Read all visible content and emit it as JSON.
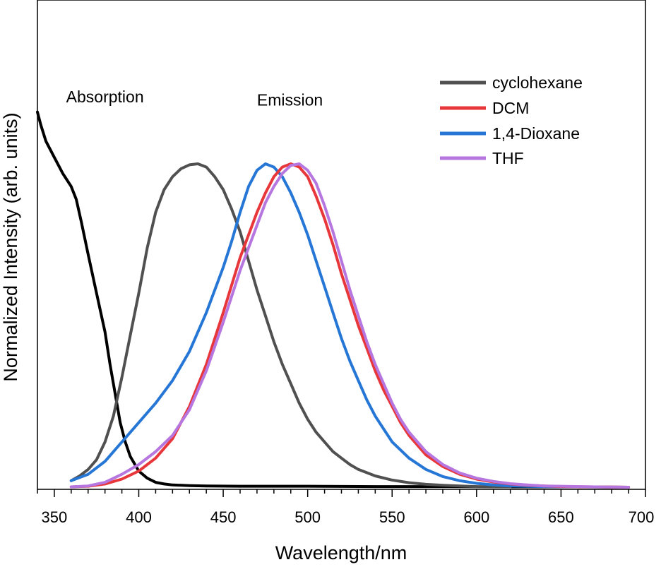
{
  "chart_data": {
    "type": "line",
    "title": "",
    "xlabel": "Wavelength/nm",
    "ylabel": "Normalized Intensity (arb. units)",
    "xlim": [
      340,
      700
    ],
    "ylim": [
      0,
      1.15
    ],
    "x_ticks": [
      350,
      400,
      450,
      500,
      550,
      600,
      650,
      700
    ],
    "y_ticks_shown": false,
    "annotations": [
      {
        "text": "Absorption",
        "x": 357,
        "y": 1.19
      },
      {
        "text": "Emission",
        "x": 470,
        "y": 1.18
      }
    ],
    "legend": {
      "position": "top-right",
      "entries": [
        "cyclohexane",
        "DCM",
        "1,4-Dioxane",
        "THF"
      ]
    },
    "series": [
      {
        "name": "cyclohexane",
        "color": "#505050",
        "in_legend": true,
        "points": [
          [
            360,
            0.02
          ],
          [
            365,
            0.035
          ],
          [
            370,
            0.055
          ],
          [
            375,
            0.085
          ],
          [
            380,
            0.14
          ],
          [
            385,
            0.22
          ],
          [
            390,
            0.34
          ],
          [
            395,
            0.47
          ],
          [
            400,
            0.6
          ],
          [
            405,
            0.74
          ],
          [
            410,
            0.85
          ],
          [
            415,
            0.92
          ],
          [
            420,
            0.96
          ],
          [
            425,
            0.985
          ],
          [
            430,
            0.997
          ],
          [
            435,
            1.0
          ],
          [
            440,
            0.99
          ],
          [
            445,
            0.96
          ],
          [
            450,
            0.92
          ],
          [
            455,
            0.86
          ],
          [
            460,
            0.79
          ],
          [
            465,
            0.7
          ],
          [
            470,
            0.61
          ],
          [
            475,
            0.53
          ],
          [
            480,
            0.45
          ],
          [
            485,
            0.38
          ],
          [
            490,
            0.32
          ],
          [
            495,
            0.26
          ],
          [
            500,
            0.21
          ],
          [
            505,
            0.17
          ],
          [
            510,
            0.14
          ],
          [
            515,
            0.11
          ],
          [
            520,
            0.09
          ],
          [
            525,
            0.07
          ],
          [
            530,
            0.055
          ],
          [
            535,
            0.045
          ],
          [
            540,
            0.035
          ],
          [
            550,
            0.022
          ],
          [
            560,
            0.014
          ],
          [
            570,
            0.009
          ],
          [
            580,
            0.006
          ],
          [
            590,
            0.004
          ],
          [
            600,
            0.002
          ],
          [
            620,
            0.001
          ]
        ]
      },
      {
        "name": "DCM",
        "color": "#e8373b",
        "in_legend": true,
        "points": [
          [
            360,
            0.001
          ],
          [
            370,
            0.003
          ],
          [
            380,
            0.01
          ],
          [
            390,
            0.025
          ],
          [
            400,
            0.05
          ],
          [
            410,
            0.09
          ],
          [
            420,
            0.15
          ],
          [
            430,
            0.25
          ],
          [
            440,
            0.38
          ],
          [
            450,
            0.54
          ],
          [
            460,
            0.71
          ],
          [
            470,
            0.85
          ],
          [
            475,
            0.91
          ],
          [
            480,
            0.96
          ],
          [
            485,
            0.99
          ],
          [
            490,
            1.0
          ],
          [
            495,
            0.99
          ],
          [
            500,
            0.96
          ],
          [
            505,
            0.9
          ],
          [
            510,
            0.83
          ],
          [
            515,
            0.75
          ],
          [
            520,
            0.66
          ],
          [
            525,
            0.58
          ],
          [
            530,
            0.5
          ],
          [
            535,
            0.43
          ],
          [
            540,
            0.36
          ],
          [
            545,
            0.3
          ],
          [
            550,
            0.25
          ],
          [
            555,
            0.2
          ],
          [
            560,
            0.16
          ],
          [
            570,
            0.1
          ],
          [
            580,
            0.064
          ],
          [
            590,
            0.04
          ],
          [
            600,
            0.025
          ],
          [
            610,
            0.016
          ],
          [
            620,
            0.01
          ],
          [
            630,
            0.006
          ],
          [
            640,
            0.004
          ],
          [
            650,
            0.002
          ],
          [
            670,
            0.001
          ],
          [
            690,
            0.0
          ]
        ]
      },
      {
        "name": "1,4-Dioxane",
        "color": "#2676d6",
        "in_legend": true,
        "points": [
          [
            360,
            0.02
          ],
          [
            370,
            0.04
          ],
          [
            380,
            0.08
          ],
          [
            390,
            0.14
          ],
          [
            400,
            0.2
          ],
          [
            410,
            0.26
          ],
          [
            420,
            0.33
          ],
          [
            430,
            0.42
          ],
          [
            440,
            0.54
          ],
          [
            450,
            0.68
          ],
          [
            455,
            0.76
          ],
          [
            460,
            0.85
          ],
          [
            465,
            0.93
          ],
          [
            470,
            0.98
          ],
          [
            475,
            1.0
          ],
          [
            480,
            0.99
          ],
          [
            485,
            0.96
          ],
          [
            490,
            0.91
          ],
          [
            495,
            0.85
          ],
          [
            500,
            0.78
          ],
          [
            505,
            0.7
          ],
          [
            510,
            0.62
          ],
          [
            515,
            0.54
          ],
          [
            520,
            0.46
          ],
          [
            525,
            0.39
          ],
          [
            530,
            0.33
          ],
          [
            535,
            0.27
          ],
          [
            540,
            0.22
          ],
          [
            545,
            0.18
          ],
          [
            550,
            0.14
          ],
          [
            560,
            0.09
          ],
          [
            570,
            0.055
          ],
          [
            580,
            0.033
          ],
          [
            590,
            0.02
          ],
          [
            600,
            0.012
          ],
          [
            610,
            0.007
          ],
          [
            620,
            0.004
          ],
          [
            640,
            0.002
          ],
          [
            660,
            0.001
          ]
        ]
      },
      {
        "name": "THF",
        "color": "#b676e0",
        "in_legend": true,
        "points": [
          [
            360,
            0.001
          ],
          [
            370,
            0.004
          ],
          [
            380,
            0.015
          ],
          [
            390,
            0.04
          ],
          [
            400,
            0.07
          ],
          [
            410,
            0.11
          ],
          [
            420,
            0.16
          ],
          [
            430,
            0.24
          ],
          [
            440,
            0.36
          ],
          [
            450,
            0.51
          ],
          [
            460,
            0.67
          ],
          [
            470,
            0.81
          ],
          [
            475,
            0.88
          ],
          [
            480,
            0.93
          ],
          [
            485,
            0.97
          ],
          [
            490,
            0.995
          ],
          [
            495,
            1.0
          ],
          [
            500,
            0.98
          ],
          [
            505,
            0.94
          ],
          [
            510,
            0.87
          ],
          [
            515,
            0.79
          ],
          [
            520,
            0.7
          ],
          [
            525,
            0.61
          ],
          [
            530,
            0.53
          ],
          [
            535,
            0.45
          ],
          [
            540,
            0.38
          ],
          [
            545,
            0.32
          ],
          [
            550,
            0.26
          ],
          [
            555,
            0.21
          ],
          [
            560,
            0.17
          ],
          [
            570,
            0.11
          ],
          [
            580,
            0.07
          ],
          [
            590,
            0.044
          ],
          [
            600,
            0.028
          ],
          [
            610,
            0.018
          ],
          [
            620,
            0.011
          ],
          [
            630,
            0.007
          ],
          [
            640,
            0.004
          ],
          [
            650,
            0.003
          ],
          [
            670,
            0.001
          ],
          [
            690,
            0.0
          ]
        ]
      },
      {
        "name": "Absorption",
        "color": "#000000",
        "in_legend": false,
        "points": [
          [
            340,
            1.16
          ],
          [
            342,
            1.12
          ],
          [
            345,
            1.07
          ],
          [
            350,
            1.02
          ],
          [
            355,
            0.97
          ],
          [
            360,
            0.93
          ],
          [
            363,
            0.89
          ],
          [
            366,
            0.82
          ],
          [
            370,
            0.72
          ],
          [
            375,
            0.6
          ],
          [
            380,
            0.48
          ],
          [
            383,
            0.38
          ],
          [
            386,
            0.29
          ],
          [
            389,
            0.2
          ],
          [
            392,
            0.14
          ],
          [
            395,
            0.095
          ],
          [
            400,
            0.05
          ],
          [
            405,
            0.028
          ],
          [
            410,
            0.015
          ],
          [
            415,
            0.01
          ],
          [
            420,
            0.007
          ],
          [
            430,
            0.005
          ],
          [
            440,
            0.004
          ],
          [
            460,
            0.003
          ],
          [
            500,
            0.003
          ],
          [
            540,
            0.002
          ],
          [
            580,
            0.002
          ],
          [
            620,
            0.001
          ],
          [
            660,
            0.001
          ],
          [
            690,
            0.0
          ]
        ]
      }
    ]
  }
}
